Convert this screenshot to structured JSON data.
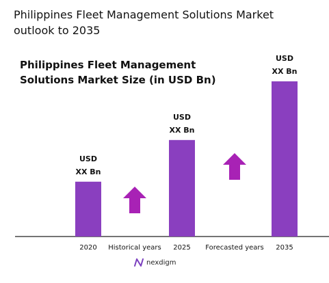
{
  "header": {
    "title": "Philippines Fleet Management Solutions Market outlook to 2035"
  },
  "chart_data": {
    "type": "bar",
    "title": "Philippines Fleet Management Solutions Market Size (in USD Bn)",
    "xlabel": "",
    "ylabel": "",
    "categories": [
      "2020",
      "2025",
      "2035"
    ],
    "values": [
      1,
      1.76,
      2.83
    ],
    "ylim": [
      0,
      2.83
    ],
    "value_labels": [
      "USD\nXX Bn",
      "USD\nXX Bn",
      "USD\nXX Bn"
    ],
    "gap_labels": [
      "Historical years",
      "Forecasted years"
    ],
    "grid": false,
    "legend": "none",
    "colors": {
      "bar": "#8a3fbf",
      "arrow": "#a822b5",
      "axis": "#222222"
    }
  },
  "footer": {
    "brand_name": "nexdigm",
    "brand_icon": "nexdigm-logo-icon",
    "brand_color": "#7b3fbf"
  }
}
